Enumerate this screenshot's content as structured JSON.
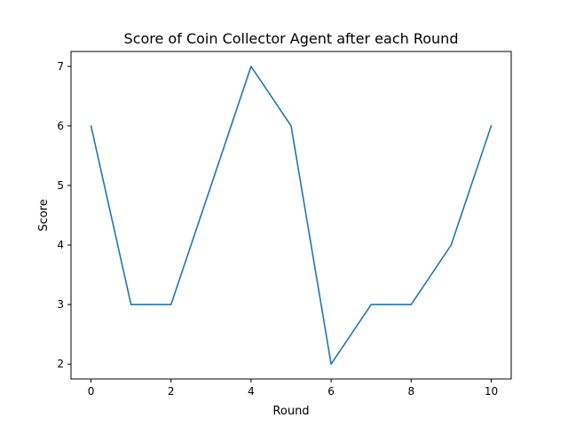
{
  "chart_data": {
    "type": "line",
    "title": "Score of Coin Collector Agent after each Round",
    "xlabel": "Round",
    "ylabel": "Score",
    "xlim": [
      -0.5,
      10.5
    ],
    "ylim": [
      1.75,
      7.25
    ],
    "xticks": [
      0,
      2,
      4,
      6,
      8,
      10
    ],
    "yticks": [
      2,
      3,
      4,
      5,
      6,
      7
    ],
    "grid": false,
    "series": [
      {
        "color": "#1f77b4",
        "x": [
          0,
          1,
          2,
          3,
          4,
          5,
          6,
          7,
          8,
          9,
          10
        ],
        "values": [
          6,
          3,
          3,
          5,
          7,
          6,
          2,
          3,
          3,
          4,
          6
        ]
      }
    ]
  }
}
